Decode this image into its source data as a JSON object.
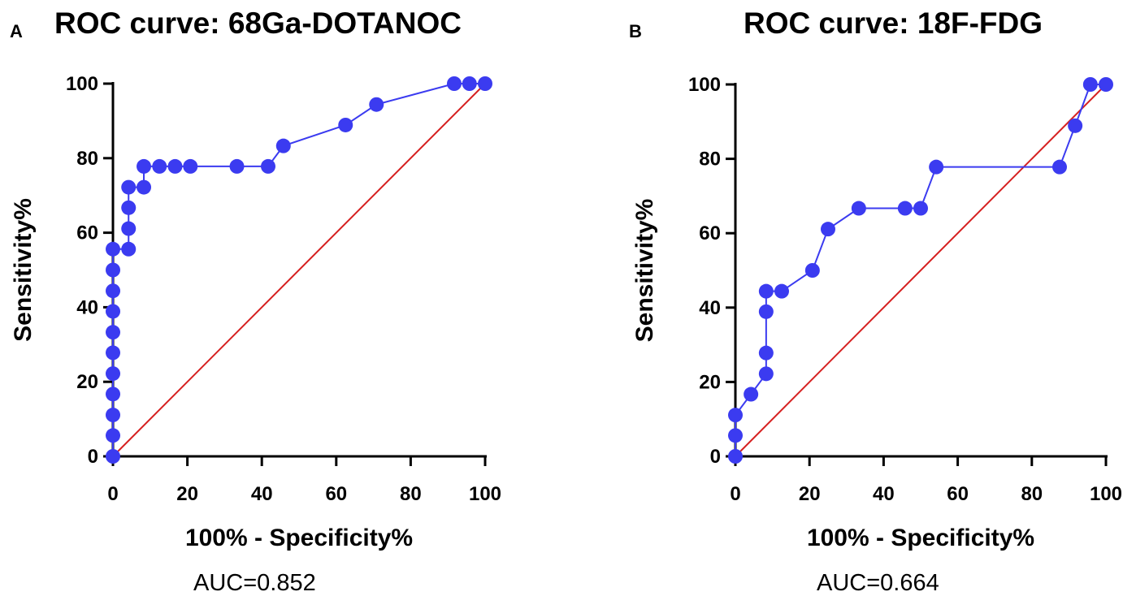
{
  "chart_data": [
    {
      "type": "line",
      "panel_label": "A",
      "title": "ROC curve: 68Ga-DOTANOC",
      "xlabel": "100% - Specificity%",
      "ylabel": "Sensitivity%",
      "xlim": [
        0,
        100
      ],
      "ylim": [
        0,
        100
      ],
      "xticks": [
        "0",
        "20",
        "40",
        "60",
        "80",
        "100"
      ],
      "yticks": [
        "0",
        "20",
        "40",
        "60",
        "80",
        "100"
      ],
      "annotation": "AUC=0.852",
      "series": [
        {
          "name": "ROC",
          "color": "#3b3bf0",
          "x": [
            0,
            0,
            0,
            0,
            0,
            0,
            0,
            0,
            0,
            0,
            0,
            4.2,
            4.2,
            4.2,
            4.2,
            8.3,
            8.3,
            12.5,
            16.7,
            20.8,
            33.3,
            41.7,
            45.8,
            62.5,
            70.8,
            91.7,
            95.8,
            100
          ],
          "y": [
            0,
            5.6,
            11.1,
            16.7,
            22.2,
            27.8,
            33.3,
            38.9,
            44.4,
            50.0,
            55.6,
            55.6,
            61.1,
            66.7,
            72.2,
            72.2,
            77.8,
            77.8,
            77.8,
            77.8,
            77.8,
            77.8,
            83.3,
            88.9,
            94.4,
            100,
            100,
            100
          ]
        },
        {
          "name": "Reference line",
          "color": "#d62020",
          "x": [
            0,
            100
          ],
          "y": [
            0,
            100
          ]
        }
      ]
    },
    {
      "type": "line",
      "panel_label": "B",
      "title": "ROC curve: 18F-FDG",
      "xlabel": "100% - Specificity%",
      "ylabel": "Sensitivity%",
      "xlim": [
        0,
        100
      ],
      "ylim": [
        0,
        100
      ],
      "xticks": [
        "0",
        "20",
        "40",
        "60",
        "80",
        "100"
      ],
      "yticks": [
        "0",
        "20",
        "40",
        "60",
        "80",
        "100"
      ],
      "annotation": "AUC=0.664",
      "series": [
        {
          "name": "ROC",
          "color": "#3b3bf0",
          "x": [
            0,
            0,
            0,
            4.2,
            8.3,
            8.3,
            8.3,
            8.3,
            12.5,
            20.8,
            25,
            33.3,
            45.8,
            50,
            54.2,
            87.5,
            91.7,
            95.8,
            100
          ],
          "y": [
            0,
            5.6,
            11.1,
            16.7,
            22.2,
            27.8,
            38.9,
            44.4,
            44.4,
            50,
            61.1,
            66.7,
            66.7,
            66.7,
            77.8,
            77.8,
            88.9,
            100,
            100
          ]
        },
        {
          "name": "Reference line",
          "color": "#d62020",
          "x": [
            0,
            100
          ],
          "y": [
            0,
            100
          ]
        }
      ]
    }
  ]
}
